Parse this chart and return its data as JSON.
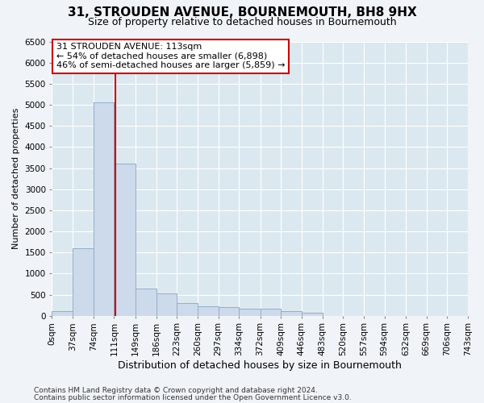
{
  "title": "31, STROUDEN AVENUE, BOURNEMOUTH, BH8 9HX",
  "subtitle": "Size of property relative to detached houses in Bournemouth",
  "xlabel": "Distribution of detached houses by size in Bournemouth",
  "ylabel": "Number of detached properties",
  "footer_line1": "Contains HM Land Registry data © Crown copyright and database right 2024.",
  "footer_line2": "Contains public sector information licensed under the Open Government Licence v3.0.",
  "bar_edges": [
    0,
    37,
    74,
    111,
    149,
    186,
    223,
    260,
    297,
    334,
    372,
    409,
    446,
    483,
    520,
    557,
    594,
    632,
    669,
    706,
    743
  ],
  "bar_heights": [
    100,
    1600,
    5050,
    3600,
    650,
    520,
    300,
    220,
    200,
    170,
    165,
    100,
    75,
    0,
    0,
    0,
    0,
    0,
    0,
    0
  ],
  "bar_color": "#ccdaeb",
  "bar_edge_color": "#93aec8",
  "bg_color": "#dce8f0",
  "grid_color": "#ffffff",
  "vline_x": 113,
  "vline_color": "#cc0000",
  "annotation_text": "31 STROUDEN AVENUE: 113sqm\n← 54% of detached houses are smaller (6,898)\n46% of semi-detached houses are larger (5,859) →",
  "annotation_box_color": "#ffffff",
  "annotation_box_edge": "#cc0000",
  "ylim": [
    0,
    6500
  ],
  "yticks": [
    0,
    500,
    1000,
    1500,
    2000,
    2500,
    3000,
    3500,
    4000,
    4500,
    5000,
    5500,
    6000,
    6500
  ],
  "title_fontsize": 11,
  "subtitle_fontsize": 9,
  "xlabel_fontsize": 9,
  "ylabel_fontsize": 8,
  "tick_fontsize": 7.5,
  "annotation_fontsize": 8,
  "footer_fontsize": 6.5
}
